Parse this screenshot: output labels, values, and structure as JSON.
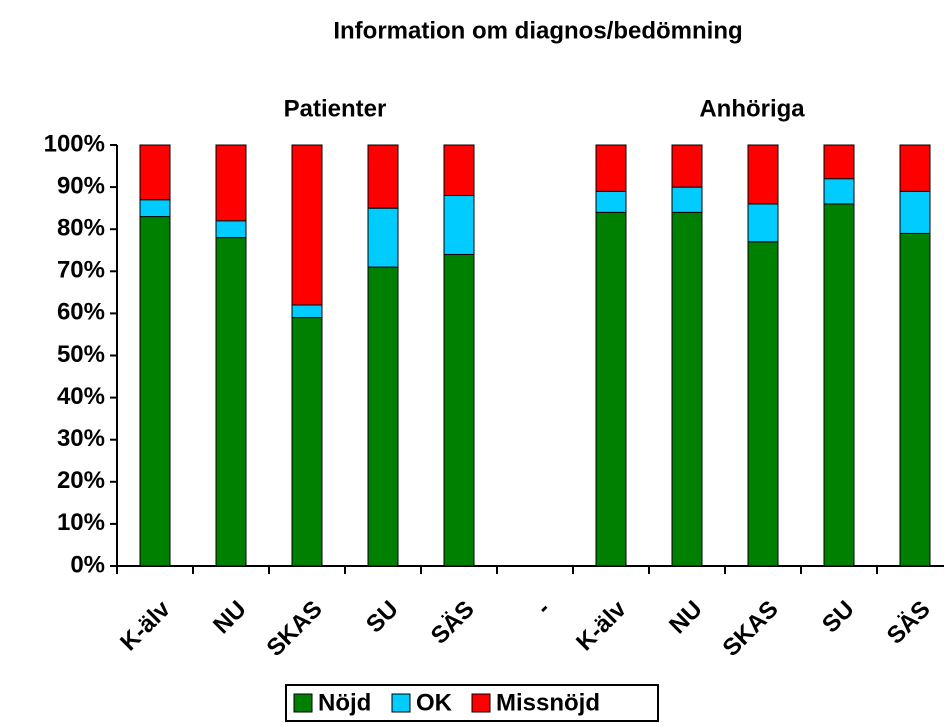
{
  "chart_data": {
    "type": "stacked_bar",
    "title": "Information om diagnos/bedömning",
    "annotations": [
      "Patienter",
      "Anhöriga"
    ],
    "categories": [
      "K-älv",
      "NU",
      "SKAS",
      "SU",
      "SÄS",
      "-",
      "K-älv",
      "NU",
      "SKAS",
      "SU",
      "SÄS"
    ],
    "series": [
      {
        "name": "Nöjd",
        "color": "#008000",
        "values": [
          83,
          78,
          59,
          71,
          74,
          null,
          84,
          84,
          77,
          86,
          79
        ]
      },
      {
        "name": "OK",
        "color": "#00ccff",
        "values": [
          4,
          4,
          3,
          14,
          14,
          null,
          5,
          6,
          9,
          6,
          10
        ]
      },
      {
        "name": "Missnöjd",
        "color": "#ff0000",
        "values": [
          13,
          18,
          38,
          15,
          12,
          null,
          11,
          10,
          14,
          8,
          11
        ]
      }
    ],
    "ylim": [
      0,
      100
    ],
    "yticks": [
      {
        "value": 0,
        "label": "0%"
      },
      {
        "value": 10,
        "label": "10%"
      },
      {
        "value": 20,
        "label": "20%"
      },
      {
        "value": 30,
        "label": "30%"
      },
      {
        "value": 40,
        "label": "40%"
      },
      {
        "value": 50,
        "label": "50%"
      },
      {
        "value": 60,
        "label": "60%"
      },
      {
        "value": 70,
        "label": "70%"
      },
      {
        "value": 80,
        "label": "80%"
      },
      {
        "value": 90,
        "label": "90%"
      },
      {
        "value": 100,
        "label": "100%"
      }
    ],
    "grid": false,
    "legend": "bottom"
  }
}
